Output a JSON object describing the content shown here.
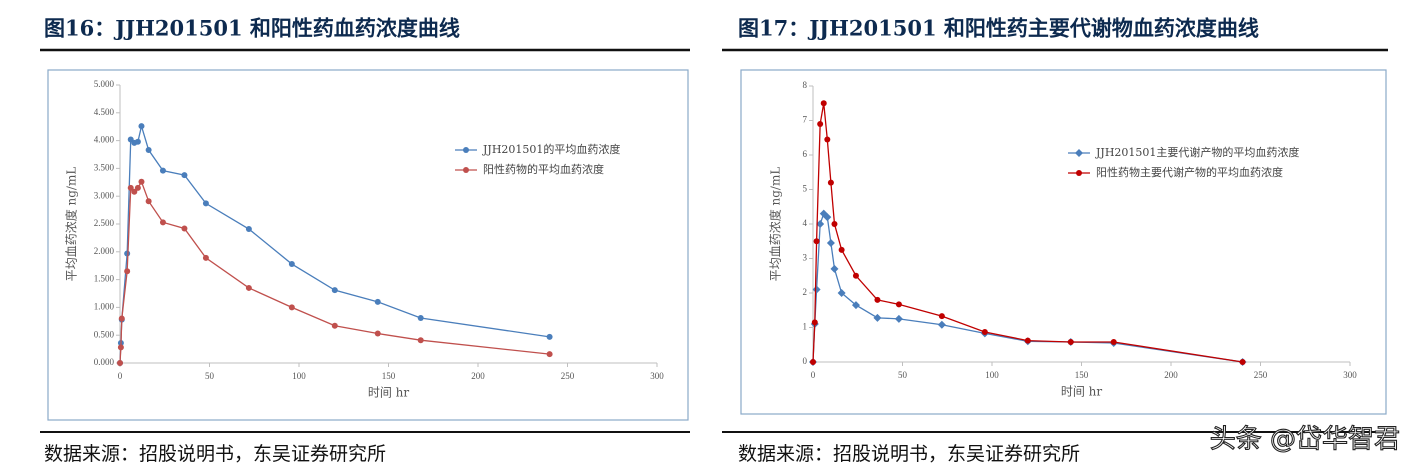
{
  "watermark": "头条 @岱华智君",
  "chart_data": [
    {
      "type": "line",
      "title": "图16：JJH201501 和阳性药血药浓度曲线",
      "source": "数据来源：招股说明书，东吴证券研究所",
      "x_label": "时间 hr",
      "y_label": "平均血药浓度 ng/mL",
      "x": [
        0,
        0.5,
        1,
        4,
        6,
        8,
        10,
        12,
        16,
        24,
        36,
        48,
        72,
        96,
        120,
        144,
        168,
        240
      ],
      "series": [
        {
          "name": "JJH201501的平均血药浓度",
          "color": "#4a7ebb",
          "marker": "circle",
          "values": [
            0,
            0.36,
            0.78,
            1.97,
            4.02,
            3.96,
            3.98,
            4.26,
            3.83,
            3.46,
            3.38,
            2.87,
            2.41,
            1.78,
            1.31,
            1.1,
            0.81,
            0.47
          ]
        },
        {
          "name": "阳性药物的平均血药浓度",
          "color": "#c0504d",
          "marker": "circle",
          "values": [
            0,
            0.28,
            0.8,
            1.65,
            3.15,
            3.08,
            3.15,
            3.26,
            2.91,
            2.53,
            2.42,
            1.89,
            1.35,
            1.0,
            0.67,
            0.53,
            0.41,
            0.16
          ]
        }
      ],
      "xlim": [
        0,
        300
      ],
      "xticks": [
        0,
        50,
        100,
        150,
        200,
        250,
        300
      ],
      "ylim": [
        0,
        5
      ],
      "yticks": [
        {
          "value": 0,
          "label": "0.000"
        },
        {
          "value": 0.5,
          "label": "0.500"
        },
        {
          "value": 1,
          "label": "1.000"
        },
        {
          "value": 1.5,
          "label": "1.500"
        },
        {
          "value": 2,
          "label": "2.000"
        },
        {
          "value": 2.5,
          "label": "2.500"
        },
        {
          "value": 3,
          "label": "3.000"
        },
        {
          "value": 3.5,
          "label": "3.500"
        },
        {
          "value": 4,
          "label": "4.000"
        },
        {
          "value": 4.5,
          "label": "4.500"
        },
        {
          "value": 5,
          "label": "5.000"
        }
      ],
      "grid": false
    },
    {
      "type": "line",
      "title": "图17：JJH201501 和阳性药主要代谢物血药浓度曲线",
      "source": "数据来源：招股说明书，东吴证券研究所",
      "x_label": "时间 hr",
      "y_label": "平均血药浓度 ng/mL",
      "x": [
        0,
        1,
        2,
        4,
        6,
        8,
        10,
        12,
        16,
        24,
        36,
        48,
        72,
        96,
        120,
        144,
        168,
        240
      ],
      "series": [
        {
          "name": "JJH201501主要代谢产物的平均血药浓度",
          "color": "#4a7ebb",
          "marker": "diamond",
          "values": [
            0,
            1.1,
            2.1,
            4.0,
            4.3,
            4.2,
            3.45,
            2.7,
            2.0,
            1.65,
            1.28,
            1.25,
            1.08,
            0.83,
            0.6,
            0.58,
            0.55,
            0
          ]
        },
        {
          "name": "阳性药物主要代谢产物的平均血药浓度",
          "color": "#c00000",
          "marker": "circle",
          "values": [
            0,
            1.15,
            3.5,
            6.9,
            7.5,
            6.45,
            5.2,
            4.0,
            3.25,
            2.5,
            1.8,
            1.67,
            1.33,
            0.87,
            0.62,
            0.58,
            0.58,
            0
          ]
        }
      ],
      "xlim": [
        0,
        300
      ],
      "xticks": [
        0,
        50,
        100,
        150,
        200,
        250,
        300
      ],
      "ylim": [
        0,
        8
      ],
      "yticks": [
        0,
        1,
        2,
        3,
        4,
        5,
        6,
        7,
        8
      ],
      "grid": false
    }
  ]
}
